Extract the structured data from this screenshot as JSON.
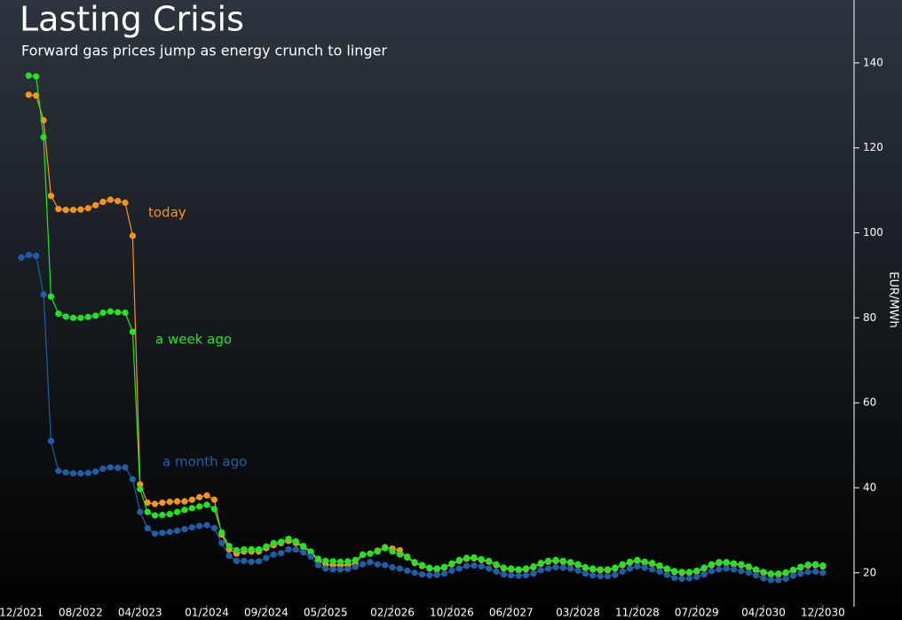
{
  "chart_data": {
    "type": "line",
    "title": "Lasting Crisis",
    "subtitle": "Forward gas prices jump as energy crunch to linger",
    "y_label": "EUR/MWh",
    "x": [
      "12/2021",
      "01/2022",
      "02/2022",
      "03/2022",
      "04/2022",
      "05/2022",
      "06/2022",
      "07/2022",
      "08/2022",
      "09/2022",
      "10/2022",
      "11/2022",
      "12/2022",
      "01/2023",
      "02/2023",
      "03/2023",
      "04/2023",
      "05/2023",
      "06/2023",
      "07/2023",
      "08/2023",
      "09/2023",
      "10/2023",
      "11/2023",
      "12/2023",
      "01/2024",
      "02/2024",
      "03/2024",
      "04/2024",
      "05/2024",
      "06/2024",
      "07/2024",
      "08/2024",
      "09/2024",
      "10/2024",
      "11/2024",
      "12/2024",
      "01/2025",
      "02/2025",
      "03/2025",
      "04/2025",
      "05/2025",
      "06/2025",
      "07/2025",
      "08/2025",
      "09/2025",
      "10/2025",
      "11/2025",
      "12/2025",
      "01/2026",
      "02/2026",
      "03/2026",
      "04/2026",
      "05/2026",
      "06/2026",
      "07/2026",
      "08/2026",
      "09/2026",
      "10/2026",
      "11/2026",
      "12/2026",
      "01/2027",
      "02/2027",
      "03/2027",
      "04/2027",
      "05/2027",
      "06/2027",
      "07/2027",
      "08/2027",
      "09/2027",
      "10/2027",
      "11/2027",
      "12/2027",
      "01/2028",
      "02/2028",
      "03/2028",
      "04/2028",
      "05/2028",
      "06/2028",
      "07/2028",
      "08/2028",
      "09/2028",
      "10/2028",
      "11/2028",
      "12/2028",
      "01/2029",
      "02/2029",
      "03/2029",
      "04/2029",
      "05/2029",
      "06/2029",
      "07/2029",
      "08/2029",
      "09/2029",
      "10/2029",
      "11/2029",
      "12/2029",
      "01/2030",
      "02/2030",
      "03/2030",
      "04/2030",
      "05/2030",
      "06/2030",
      "07/2030",
      "08/2030",
      "09/2030",
      "10/2030",
      "11/2030",
      "12/2030"
    ],
    "xticks": [
      "12/2021",
      "08/2022",
      "04/2023",
      "01/2024",
      "09/2024",
      "05/2025",
      "02/2026",
      "10/2026",
      "06/2027",
      "03/2028",
      "11/2028",
      "07/2029",
      "04/2030",
      "12/2030"
    ],
    "series": [
      {
        "name": "today",
        "color": "#f7941d",
        "values": [
          null,
          132.5,
          132.3,
          126.5,
          108.7,
          105.6,
          105.4,
          105.4,
          105.5,
          105.8,
          106.5,
          107.3,
          107.8,
          107.5,
          107.1,
          99.3,
          40.8,
          36.5,
          36.2,
          36.5,
          36.7,
          36.8,
          36.8,
          37.2,
          37.8,
          38.2,
          37.2,
          29,
          25.5,
          24.5,
          25,
          25,
          25,
          25.8,
          26.5,
          27,
          27.5,
          27,
          26,
          24.8,
          22.8,
          22,
          21.8,
          21.8,
          21.8,
          22.2,
          24.2,
          24.5,
          25.2,
          26,
          25.7,
          25.3,
          23.6,
          22.3,
          21.6,
          21,
          20.8,
          21.2,
          22,
          22.8,
          23.3,
          23.4,
          23,
          22.6,
          21.8,
          21,
          20.8,
          20.6,
          20.8,
          21.3,
          22.1,
          22.6,
          22.8,
          22.6,
          22.3,
          21.8,
          21.1,
          20.8,
          20.6,
          20.6,
          21,
          21.8,
          22.4,
          22.8,
          22.4,
          22.1,
          21.5,
          20.8,
          20.2,
          20,
          20,
          20.3,
          21,
          21.8,
          22.3,
          22.3,
          22,
          21.8,
          21.3,
          20.6,
          20,
          19.6,
          19.6,
          19.9,
          20.5,
          21.2,
          21.7,
          21.8,
          21.5
        ]
      },
      {
        "name": "a week ago",
        "color": "#22e522",
        "values": [
          null,
          137,
          136.8,
          122.5,
          85,
          81,
          80.3,
          80,
          80,
          80.2,
          80.5,
          81.2,
          81.5,
          81.3,
          81.2,
          76.7,
          39.7,
          34.3,
          33.5,
          33.6,
          33.8,
          34.3,
          34.8,
          35.2,
          35.6,
          36,
          35,
          29.5,
          26.3,
          25.3,
          25.5,
          25.5,
          25.5,
          26.2,
          27,
          27.3,
          28,
          27.4,
          26.3,
          25,
          23.3,
          22.8,
          22.7,
          22.6,
          22.7,
          23,
          24.3,
          24.5,
          25,
          25.8,
          25,
          24.3,
          23.8,
          22.5,
          21.8,
          21.2,
          21,
          21.4,
          22.2,
          23,
          23.5,
          23.6,
          23.2,
          22.8,
          22,
          21.2,
          21,
          20.8,
          21,
          21.5,
          22.3,
          22.8,
          23,
          22.8,
          22.5,
          22,
          21.3,
          21,
          20.8,
          20.8,
          21.2,
          22,
          22.6,
          23,
          22.6,
          22.3,
          21.7,
          21,
          20.4,
          20.2,
          20.2,
          20.5,
          21.2,
          22,
          22.5,
          22.5,
          22.2,
          22,
          21.5,
          20.8,
          20.2,
          19.8,
          19.8,
          20.1,
          20.7,
          21.4,
          21.9,
          22,
          21.7
        ]
      },
      {
        "name": "a month ago",
        "color": "#1f5fa8",
        "values": [
          94.2,
          94.8,
          94.6,
          85.5,
          51,
          44,
          43.6,
          43.4,
          43.4,
          43.5,
          43.8,
          44.5,
          44.8,
          44.7,
          44.8,
          42,
          34.3,
          30.5,
          29.2,
          29.4,
          29.6,
          29.9,
          30.3,
          30.7,
          31,
          31.2,
          30.5,
          27,
          24,
          22.8,
          22.8,
          22.6,
          22.7,
          23.5,
          24.3,
          24.6,
          25.5,
          25.5,
          24.8,
          23.8,
          21.8,
          21,
          20.8,
          20.8,
          20.9,
          21.4,
          22,
          22.5,
          22,
          21.8,
          21.3,
          21,
          20.5,
          20,
          19.6,
          19.4,
          19.5,
          19.8,
          20.5,
          21,
          21.6,
          21.7,
          21.5,
          21,
          20.3,
          19.6,
          19.4,
          19.3,
          19.4,
          19.8,
          20.6,
          21,
          21.3,
          21.2,
          21,
          20.5,
          19.8,
          19.4,
          19.2,
          19.2,
          19.5,
          20.3,
          21,
          21.5,
          21.2,
          20.8,
          20.3,
          19.5,
          18.8,
          18.6,
          18.7,
          19,
          19.6,
          20.4,
          20.8,
          21,
          20.8,
          20.4,
          20,
          19.4,
          18.7,
          18.3,
          18.3,
          18.6,
          19.3,
          19.8,
          20.2,
          20.3,
          20
        ]
      }
    ],
    "ylim": [
      11.6,
      154.8
    ],
    "yticks": [
      20,
      40,
      60,
      80,
      100,
      120,
      140
    ],
    "y_axis_side": "right"
  }
}
